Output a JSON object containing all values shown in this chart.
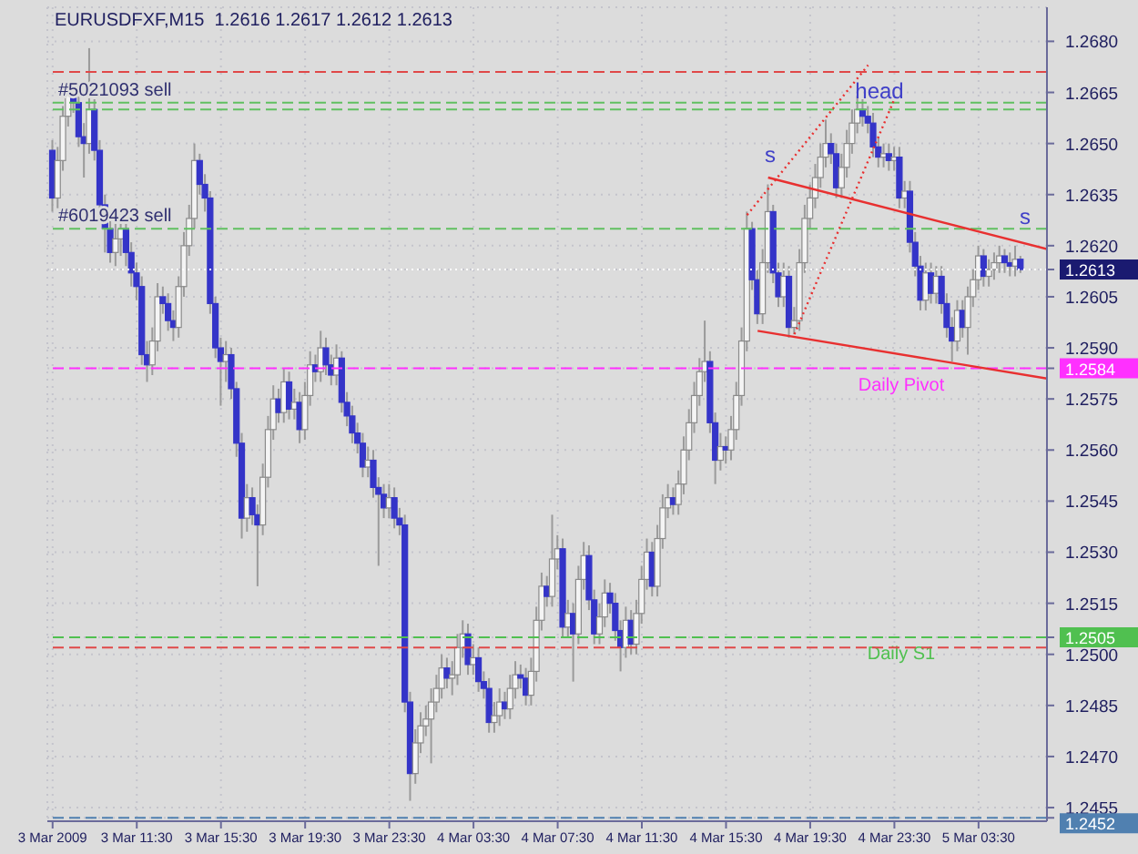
{
  "chart_data": {
    "type": "candlestick",
    "title": "EURUSDFXF,M15  1.2616 1.2617 1.2612 1.2613",
    "x": [
      "2009-03-03T07:30",
      "2009-03-03T07:45",
      "2009-03-03T08:00",
      "2009-03-03T08:15",
      "2009-03-03T08:30",
      "2009-03-03T08:45",
      "2009-03-03T09:00",
      "2009-03-03T09:15",
      "2009-03-03T09:30",
      "2009-03-03T09:45",
      "2009-03-03T10:00",
      "2009-03-03T10:15",
      "2009-03-03T10:30",
      "2009-03-03T10:45",
      "2009-03-03T11:00",
      "2009-03-03T11:15",
      "2009-03-03T11:30",
      "2009-03-03T11:45",
      "2009-03-03T12:00",
      "2009-03-03T12:15",
      "2009-03-03T12:30",
      "2009-03-03T12:45",
      "2009-03-03T13:00",
      "2009-03-03T13:15",
      "2009-03-03T13:30",
      "2009-03-03T13:45",
      "2009-03-03T14:00",
      "2009-03-03T14:15",
      "2009-03-03T14:30",
      "2009-03-03T14:45",
      "2009-03-03T15:00",
      "2009-03-03T15:15",
      "2009-03-03T15:30",
      "2009-03-03T15:45",
      "2009-03-03T16:00",
      "2009-03-03T16:15",
      "2009-03-03T16:30",
      "2009-03-03T16:45",
      "2009-03-03T17:00",
      "2009-03-03T17:15",
      "2009-03-03T17:30",
      "2009-03-03T17:45",
      "2009-03-03T18:00",
      "2009-03-03T18:15",
      "2009-03-03T18:30",
      "2009-03-03T18:45",
      "2009-03-03T19:00",
      "2009-03-03T19:15",
      "2009-03-03T19:30",
      "2009-03-03T19:45",
      "2009-03-03T20:00",
      "2009-03-03T20:15",
      "2009-03-03T20:30",
      "2009-03-03T20:45",
      "2009-03-03T21:00",
      "2009-03-03T21:15",
      "2009-03-03T21:30",
      "2009-03-03T21:45",
      "2009-03-03T22:00",
      "2009-03-03T22:15",
      "2009-03-03T22:30",
      "2009-03-03T22:45",
      "2009-03-03T23:00",
      "2009-03-03T23:15",
      "2009-03-03T23:30",
      "2009-03-03T23:45",
      "2009-03-04T00:00",
      "2009-03-04T00:15",
      "2009-03-04T00:30",
      "2009-03-04T00:45",
      "2009-03-04T01:00",
      "2009-03-04T01:15",
      "2009-03-04T01:30",
      "2009-03-04T01:45",
      "2009-03-04T02:00",
      "2009-03-04T02:15",
      "2009-03-04T02:30",
      "2009-03-04T02:45",
      "2009-03-04T03:00",
      "2009-03-04T03:15",
      "2009-03-04T03:30",
      "2009-03-04T03:45",
      "2009-03-04T04:00",
      "2009-03-04T04:15",
      "2009-03-04T04:30",
      "2009-03-04T04:45",
      "2009-03-04T05:00",
      "2009-03-04T05:15",
      "2009-03-04T05:30",
      "2009-03-04T05:45",
      "2009-03-04T06:00",
      "2009-03-04T06:15",
      "2009-03-04T06:30",
      "2009-03-04T06:45",
      "2009-03-04T07:00",
      "2009-03-04T07:15",
      "2009-03-04T07:30",
      "2009-03-04T07:45",
      "2009-03-04T08:00",
      "2009-03-04T08:15",
      "2009-03-04T08:30",
      "2009-03-04T08:45",
      "2009-03-04T09:00",
      "2009-03-04T09:15",
      "2009-03-04T09:30",
      "2009-03-04T09:45",
      "2009-03-04T10:00",
      "2009-03-04T10:15",
      "2009-03-04T10:30",
      "2009-03-04T10:45",
      "2009-03-04T11:00",
      "2009-03-04T11:15",
      "2009-03-04T11:30",
      "2009-03-04T11:45",
      "2009-03-04T12:00",
      "2009-03-04T12:15",
      "2009-03-04T12:30",
      "2009-03-04T12:45",
      "2009-03-04T13:00",
      "2009-03-04T13:15",
      "2009-03-04T13:30",
      "2009-03-04T13:45",
      "2009-03-04T14:00",
      "2009-03-04T14:15",
      "2009-03-04T14:30",
      "2009-03-04T14:45",
      "2009-03-04T15:00",
      "2009-03-04T15:15",
      "2009-03-04T15:30",
      "2009-03-04T15:45",
      "2009-03-04T16:00",
      "2009-03-04T16:15",
      "2009-03-04T16:30",
      "2009-03-04T16:45",
      "2009-03-04T17:00",
      "2009-03-04T17:15",
      "2009-03-04T17:30",
      "2009-03-04T17:45",
      "2009-03-04T18:00",
      "2009-03-04T18:15",
      "2009-03-04T18:30",
      "2009-03-04T18:45",
      "2009-03-04T19:00",
      "2009-03-04T19:15",
      "2009-03-04T19:30",
      "2009-03-04T19:45",
      "2009-03-04T20:00",
      "2009-03-04T20:15",
      "2009-03-04T20:30",
      "2009-03-04T20:45",
      "2009-03-04T21:00",
      "2009-03-04T21:15",
      "2009-03-04T21:30",
      "2009-03-04T21:45",
      "2009-03-04T22:00",
      "2009-03-04T22:15",
      "2009-03-04T22:30",
      "2009-03-04T22:45",
      "2009-03-04T23:00",
      "2009-03-04T23:15",
      "2009-03-04T23:30",
      "2009-03-04T23:45",
      "2009-03-05T00:00",
      "2009-03-05T00:15",
      "2009-03-05T00:30",
      "2009-03-05T00:45",
      "2009-03-05T01:00",
      "2009-03-05T01:15",
      "2009-03-05T01:30",
      "2009-03-05T01:45",
      "2009-03-05T02:00",
      "2009-03-05T02:15",
      "2009-03-05T02:30",
      "2009-03-05T02:45",
      "2009-03-05T03:00",
      "2009-03-05T03:15",
      "2009-03-05T03:30",
      "2009-03-05T03:45",
      "2009-03-05T04:00",
      "2009-03-05T04:15",
      "2009-03-05T04:30",
      "2009-03-05T04:45",
      "2009-03-05T05:00",
      "2009-03-05T05:15",
      "2009-03-05T05:30"
    ],
    "ohlc": [
      [
        1.2648,
        1.2651,
        1.263,
        1.2634
      ],
      [
        1.2634,
        1.2649,
        1.2631,
        1.2645
      ],
      [
        1.2645,
        1.2661,
        1.2642,
        1.2658
      ],
      [
        1.2658,
        1.2668,
        1.2655,
        1.2665
      ],
      [
        1.2665,
        1.2667,
        1.2659,
        1.2662
      ],
      [
        1.2662,
        1.2664,
        1.2649,
        1.2652
      ],
      [
        1.2652,
        1.2656,
        1.264,
        1.265
      ],
      [
        1.265,
        1.2678,
        1.2647,
        1.266
      ],
      [
        1.266,
        1.2663,
        1.2645,
        1.2648
      ],
      [
        1.2648,
        1.2651,
        1.2629,
        1.2632
      ],
      [
        1.2632,
        1.2635,
        1.2618,
        1.2625
      ],
      [
        1.2625,
        1.2628,
        1.2615,
        1.2618
      ],
      [
        1.2618,
        1.2627,
        1.2614,
        1.2622
      ],
      [
        1.2622,
        1.263,
        1.2617,
        1.2625
      ],
      [
        1.2625,
        1.2628,
        1.2614,
        1.2618
      ],
      [
        1.2618,
        1.2621,
        1.2608,
        1.2612
      ],
      [
        1.2612,
        1.2615,
        1.2604,
        1.2608
      ],
      [
        1.2608,
        1.2611,
        1.2585,
        1.2588
      ],
      [
        1.2588,
        1.2592,
        1.258,
        1.2585
      ],
      [
        1.2585,
        1.2596,
        1.2582,
        1.2592
      ],
      [
        1.2592,
        1.2609,
        1.2589,
        1.2605
      ],
      [
        1.2605,
        1.2608,
        1.26,
        1.2603
      ],
      [
        1.2603,
        1.2606,
        1.2595,
        1.2598
      ],
      [
        1.2598,
        1.2601,
        1.2592,
        1.2596
      ],
      [
        1.2596,
        1.2611,
        1.2593,
        1.2608
      ],
      [
        1.2608,
        1.2624,
        1.2605,
        1.262
      ],
      [
        1.262,
        1.2632,
        1.2617,
        1.2628
      ],
      [
        1.2628,
        1.265,
        1.2625,
        1.2645
      ],
      [
        1.2645,
        1.2647,
        1.2635,
        1.2638
      ],
      [
        1.2638,
        1.2641,
        1.263,
        1.2634
      ],
      [
        1.2634,
        1.2636,
        1.26,
        1.2603
      ],
      [
        1.2603,
        1.2605,
        1.2587,
        1.259
      ],
      [
        1.259,
        1.2593,
        1.2573,
        1.2586
      ],
      [
        1.2586,
        1.2592,
        1.258,
        1.2588
      ],
      [
        1.2588,
        1.259,
        1.2575,
        1.2578
      ],
      [
        1.2578,
        1.258,
        1.2558,
        1.2562
      ],
      [
        1.2562,
        1.2565,
        1.2534,
        1.254
      ],
      [
        1.254,
        1.255,
        1.2536,
        1.2546
      ],
      [
        1.2546,
        1.2549,
        1.2538,
        1.2541
      ],
      [
        1.2541,
        1.2544,
        1.252,
        1.2538
      ],
      [
        1.2538,
        1.2556,
        1.2535,
        1.2552
      ],
      [
        1.2552,
        1.257,
        1.2549,
        1.2566
      ],
      [
        1.2566,
        1.2579,
        1.2563,
        1.2575
      ],
      [
        1.2575,
        1.2578,
        1.2568,
        1.2571
      ],
      [
        1.2571,
        1.2584,
        1.2568,
        1.258
      ],
      [
        1.258,
        1.2583,
        1.2569,
        1.2572
      ],
      [
        1.2572,
        1.2578,
        1.2569,
        1.2574
      ],
      [
        1.2574,
        1.2577,
        1.2562,
        1.2566
      ],
      [
        1.2566,
        1.258,
        1.2563,
        1.2576
      ],
      [
        1.2576,
        1.2589,
        1.2573,
        1.2585
      ],
      [
        1.2585,
        1.2588,
        1.258,
        1.2583
      ],
      [
        1.2583,
        1.2595,
        1.258,
        1.259
      ],
      [
        1.259,
        1.2593,
        1.2582,
        1.2585
      ],
      [
        1.2585,
        1.2588,
        1.2579,
        1.2582
      ],
      [
        1.2582,
        1.2591,
        1.2579,
        1.2587
      ],
      [
        1.2587,
        1.2589,
        1.2571,
        1.2574
      ],
      [
        1.2574,
        1.2577,
        1.2567,
        1.257
      ],
      [
        1.257,
        1.2573,
        1.2562,
        1.2565
      ],
      [
        1.2565,
        1.2568,
        1.2559,
        1.2562
      ],
      [
        1.2562,
        1.2565,
        1.2552,
        1.2555
      ],
      [
        1.2555,
        1.2561,
        1.2552,
        1.2557
      ],
      [
        1.2557,
        1.256,
        1.2546,
        1.2549
      ],
      [
        1.2549,
        1.2552,
        1.2526,
        1.2547
      ],
      [
        1.2547,
        1.255,
        1.254,
        1.2543
      ],
      [
        1.2543,
        1.255,
        1.254,
        1.2546
      ],
      [
        1.2546,
        1.2549,
        1.2537,
        1.254
      ],
      [
        1.254,
        1.2543,
        1.2535,
        1.2538
      ],
      [
        1.2538,
        1.2541,
        1.2483,
        1.2486
      ],
      [
        1.2486,
        1.2489,
        1.2457,
        1.2465
      ],
      [
        1.2465,
        1.2478,
        1.2462,
        1.2474
      ],
      [
        1.2474,
        1.2483,
        1.2471,
        1.2479
      ],
      [
        1.2479,
        1.2485,
        1.2476,
        1.2481
      ],
      [
        1.2481,
        1.249,
        1.2468,
        1.2486
      ],
      [
        1.2486,
        1.2494,
        1.2483,
        1.249
      ],
      [
        1.249,
        1.25,
        1.2487,
        1.2496
      ],
      [
        1.2496,
        1.2499,
        1.249,
        1.2493
      ],
      [
        1.2493,
        1.2498,
        1.2488,
        1.2494
      ],
      [
        1.2494,
        1.2506,
        1.2491,
        1.2502
      ],
      [
        1.2502,
        1.251,
        1.2499,
        1.2506
      ],
      [
        1.2506,
        1.2509,
        1.2494,
        1.2497
      ],
      [
        1.2497,
        1.2503,
        1.2494,
        1.2499
      ],
      [
        1.2499,
        1.2502,
        1.2489,
        1.2492
      ],
      [
        1.2492,
        1.2495,
        1.2487,
        1.249
      ],
      [
        1.249,
        1.2493,
        1.2477,
        1.248
      ],
      [
        1.248,
        1.2486,
        1.2477,
        1.2482
      ],
      [
        1.2482,
        1.249,
        1.2479,
        1.2486
      ],
      [
        1.2486,
        1.2489,
        1.2481,
        1.2484
      ],
      [
        1.2484,
        1.2494,
        1.2481,
        1.249
      ],
      [
        1.249,
        1.2498,
        1.2487,
        1.2494
      ],
      [
        1.2494,
        1.2497,
        1.249,
        1.2493
      ],
      [
        1.2493,
        1.2496,
        1.2485,
        1.2488
      ],
      [
        1.2488,
        1.2499,
        1.2485,
        1.2495
      ],
      [
        1.2495,
        1.2514,
        1.2492,
        1.251
      ],
      [
        1.251,
        1.2524,
        1.2507,
        1.252
      ],
      [
        1.252,
        1.2523,
        1.2514,
        1.2517
      ],
      [
        1.2517,
        1.2541,
        1.2514,
        1.2528
      ],
      [
        1.2528,
        1.2535,
        1.2525,
        1.2531
      ],
      [
        1.2531,
        1.2534,
        1.2505,
        1.2508
      ],
      [
        1.2508,
        1.2516,
        1.2505,
        1.2512
      ],
      [
        1.2512,
        1.2515,
        1.2492,
        1.2506
      ],
      [
        1.2506,
        1.2526,
        1.2503,
        1.2522
      ],
      [
        1.2522,
        1.2533,
        1.2519,
        1.2529
      ],
      [
        1.2529,
        1.2532,
        1.2513,
        1.2516
      ],
      [
        1.2516,
        1.2519,
        1.2503,
        1.2506
      ],
      [
        1.2506,
        1.2515,
        1.2503,
        1.2511
      ],
      [
        1.2511,
        1.2522,
        1.2508,
        1.2518
      ],
      [
        1.2518,
        1.2521,
        1.2512,
        1.2515
      ],
      [
        1.2515,
        1.2518,
        1.2504,
        1.2507
      ],
      [
        1.2507,
        1.251,
        1.2495,
        1.2502
      ],
      [
        1.2502,
        1.2514,
        1.2499,
        1.251
      ],
      [
        1.251,
        1.2513,
        1.25,
        1.2503
      ],
      [
        1.2503,
        1.2516,
        1.25,
        1.2512
      ],
      [
        1.2512,
        1.2526,
        1.2509,
        1.2522
      ],
      [
        1.2522,
        1.2534,
        1.2519,
        1.253
      ],
      [
        1.253,
        1.2533,
        1.2517,
        1.252
      ],
      [
        1.252,
        1.2538,
        1.2517,
        1.2534
      ],
      [
        1.2534,
        1.2547,
        1.2531,
        1.2543
      ],
      [
        1.2543,
        1.255,
        1.254,
        1.2546
      ],
      [
        1.2546,
        1.2549,
        1.2541,
        1.2544
      ],
      [
        1.2544,
        1.2554,
        1.2541,
        1.255
      ],
      [
        1.255,
        1.2564,
        1.2547,
        1.256
      ],
      [
        1.256,
        1.2572,
        1.2557,
        1.2568
      ],
      [
        1.2568,
        1.258,
        1.2565,
        1.2576
      ],
      [
        1.2576,
        1.2587,
        1.2573,
        1.2583
      ],
      [
        1.2583,
        1.2598,
        1.258,
        1.2586
      ],
      [
        1.2586,
        1.2589,
        1.2565,
        1.2568
      ],
      [
        1.2568,
        1.2571,
        1.255,
        1.2557
      ],
      [
        1.2557,
        1.2565,
        1.2554,
        1.2561
      ],
      [
        1.2561,
        1.2564,
        1.2556,
        1.256
      ],
      [
        1.256,
        1.257,
        1.2557,
        1.2566
      ],
      [
        1.2566,
        1.258,
        1.2563,
        1.2576
      ],
      [
        1.2576,
        1.2596,
        1.2573,
        1.2592
      ],
      [
        1.2592,
        1.263,
        1.2589,
        1.2625
      ],
      [
        1.2625,
        1.2627,
        1.2607,
        1.261
      ],
      [
        1.261,
        1.2613,
        1.2597,
        1.26
      ],
      [
        1.26,
        1.2619,
        1.2597,
        1.2615
      ],
      [
        1.2615,
        1.2638,
        1.2612,
        1.263
      ],
      [
        1.263,
        1.2632,
        1.2609,
        1.2612
      ],
      [
        1.2612,
        1.2615,
        1.2602,
        1.2605
      ],
      [
        1.2605,
        1.2615,
        1.2602,
        1.2611
      ],
      [
        1.2611,
        1.2614,
        1.2593,
        1.2596
      ],
      [
        1.2596,
        1.2602,
        1.2594,
        1.2598
      ],
      [
        1.2598,
        1.2619,
        1.2595,
        1.2615
      ],
      [
        1.2615,
        1.2632,
        1.2612,
        1.2628
      ],
      [
        1.2628,
        1.2638,
        1.2625,
        1.2634
      ],
      [
        1.2634,
        1.2644,
        1.2631,
        1.264
      ],
      [
        1.264,
        1.265,
        1.2637,
        1.2646
      ],
      [
        1.2646,
        1.2657,
        1.2643,
        1.265
      ],
      [
        1.265,
        1.2653,
        1.2644,
        1.2647
      ],
      [
        1.2647,
        1.265,
        1.2634,
        1.2637
      ],
      [
        1.2637,
        1.2647,
        1.2634,
        1.2643
      ],
      [
        1.2643,
        1.2654,
        1.264,
        1.265
      ],
      [
        1.265,
        1.266,
        1.2647,
        1.2656
      ],
      [
        1.2656,
        1.2664,
        1.2653,
        1.266
      ],
      [
        1.266,
        1.2663,
        1.2655,
        1.2658
      ],
      [
        1.2658,
        1.2661,
        1.2653,
        1.2656
      ],
      [
        1.2656,
        1.2659,
        1.2646,
        1.2649
      ],
      [
        1.2649,
        1.2652,
        1.2643,
        1.2646
      ],
      [
        1.2646,
        1.265,
        1.2643,
        1.2647
      ],
      [
        1.2647,
        1.265,
        1.2642,
        1.2645
      ],
      [
        1.2645,
        1.2649,
        1.2642,
        1.2646
      ],
      [
        1.2646,
        1.2649,
        1.2631,
        1.2634
      ],
      [
        1.2634,
        1.2639,
        1.2631,
        1.2636
      ],
      [
        1.2636,
        1.2639,
        1.2618,
        1.2621
      ],
      [
        1.2621,
        1.2624,
        1.2611,
        1.2614
      ],
      [
        1.2614,
        1.2617,
        1.2601,
        1.2604
      ],
      [
        1.2604,
        1.2615,
        1.2601,
        1.2612
      ],
      [
        1.2612,
        1.2615,
        1.2603,
        1.2606
      ],
      [
        1.2606,
        1.2614,
        1.2603,
        1.2611
      ],
      [
        1.2611,
        1.2614,
        1.26,
        1.2603
      ],
      [
        1.2603,
        1.2606,
        1.2593,
        1.2596
      ],
      [
        1.2596,
        1.2599,
        1.2586,
        1.2592
      ],
      [
        1.2592,
        1.2604,
        1.2589,
        1.2601
      ],
      [
        1.2601,
        1.2604,
        1.2593,
        1.2596
      ],
      [
        1.2596,
        1.2608,
        1.2588,
        1.2605
      ],
      [
        1.2605,
        1.2613,
        1.2602,
        1.261
      ],
      [
        1.261,
        1.262,
        1.2607,
        1.2617
      ],
      [
        1.2617,
        1.2619,
        1.2608,
        1.2611
      ],
      [
        1.2611,
        1.2616,
        1.2608,
        1.2613
      ],
      [
        1.2613,
        1.2618,
        1.261,
        1.2615
      ],
      [
        1.2615,
        1.262,
        1.2612,
        1.2617
      ],
      [
        1.2617,
        1.2619,
        1.2612,
        1.2615
      ],
      [
        1.2615,
        1.2618,
        1.2611,
        1.2614
      ],
      [
        1.2614,
        1.262,
        1.2611,
        1.2616
      ],
      [
        1.2616,
        1.2617,
        1.2612,
        1.2613
      ]
    ],
    "series": [
      {
        "type": "line",
        "x": [
          "2009-03-04T17:30",
          "2009-03-05T06:45"
        ],
        "values": [
          1.264,
          1.2619
        ],
        "color": "#e83030",
        "line_style": "solid"
      },
      {
        "type": "line",
        "x": [
          "2009-03-04T17:00",
          "2009-03-05T06:45"
        ],
        "values": [
          1.2595,
          1.2581
        ],
        "color": "#e83030",
        "line_style": "solid"
      },
      {
        "type": "line",
        "x": [
          "2009-03-04T16:30",
          "2009-03-04T22:15"
        ],
        "values": [
          1.2629,
          1.2673
        ],
        "color": "#e83030",
        "line_style": "dotted"
      },
      {
        "type": "line",
        "x": [
          "2009-03-04T18:45",
          "2009-03-04T23:30"
        ],
        "values": [
          1.2594,
          1.2663
        ],
        "color": "#e83030",
        "line_style": "dotted"
      }
    ],
    "ref_lines": [
      {
        "axis": "y",
        "value": 1.2671,
        "color": "#e04848",
        "line_style": "dashed"
      },
      {
        "axis": "y",
        "value": 1.2662,
        "color": "#60c060",
        "line_style": "dashed",
        "label": "#5021093 sell"
      },
      {
        "axis": "y",
        "value": 1.266,
        "color": "#60c060",
        "line_style": "dashed"
      },
      {
        "axis": "y",
        "value": 1.2625,
        "color": "#60c060",
        "line_style": "dashed",
        "label": "#6019423 sell"
      },
      {
        "axis": "y",
        "value": 1.2613,
        "color": "#ffffff",
        "line_style": "dotted"
      },
      {
        "axis": "y",
        "value": 1.2584,
        "color": "#ff30ff",
        "line_style": "dashed",
        "label": "Daily Pivot"
      },
      {
        "axis": "y",
        "value": 1.2505,
        "color": "#50c050",
        "line_style": "dashed",
        "label": "Daily S1"
      },
      {
        "axis": "y",
        "value": 1.2502,
        "color": "#e04848",
        "line_style": "dashed"
      },
      {
        "axis": "y",
        "value": 1.2452,
        "color": "#5080b0",
        "line_style": "dashed"
      }
    ],
    "annotations": [
      "s",
      "head",
      "s"
    ],
    "xlim": [
      "2009-03-03T07:15",
      "2009-03-05T06:45"
    ],
    "xticks": [
      {
        "value": "2009-03-03T07:30",
        "label": "3 Mar 2009"
      },
      {
        "value": "2009-03-03T11:30",
        "label": "3 Mar 11:30"
      },
      {
        "value": "2009-03-03T15:30",
        "label": "3 Mar 15:30"
      },
      {
        "value": "2009-03-03T19:30",
        "label": "3 Mar 19:30"
      },
      {
        "value": "2009-03-03T23:30",
        "label": "3 Mar 23:30"
      },
      {
        "value": "2009-03-04T03:30",
        "label": "4 Mar 03:30"
      },
      {
        "value": "2009-03-04T07:30",
        "label": "4 Mar 07:30"
      },
      {
        "value": "2009-03-04T11:30",
        "label": "4 Mar 11:30"
      },
      {
        "value": "2009-03-04T15:30",
        "label": "4 Mar 15:30"
      },
      {
        "value": "2009-03-04T19:30",
        "label": "4 Mar 19:30"
      },
      {
        "value": "2009-03-04T23:30",
        "label": "4 Mar 23:30"
      },
      {
        "value": "2009-03-05T03:30",
        "label": "5 Mar 03:30"
      }
    ],
    "ylim": [
      1.2451,
      1.269
    ],
    "yticks": [
      {
        "value": 1.268,
        "label": "1.2680"
      },
      1.2665,
      {
        "value": 1.265,
        "label": "1.2650"
      },
      1.2635,
      {
        "value": 1.262,
        "label": "1.2620"
      },
      1.2605,
      {
        "value": 1.259,
        "label": "1.2590"
      },
      1.2575,
      {
        "value": 1.256,
        "label": "1.2560"
      },
      1.2545,
      {
        "value": 1.253,
        "label": "1.2530"
      },
      1.2515,
      {
        "value": 1.25,
        "label": "1.2500"
      },
      1.2485,
      {
        "value": 1.247,
        "label": "1.2470"
      },
      1.2455,
      1.2613,
      1.2584,
      1.2505,
      1.2452
    ],
    "grid": true
  }
}
